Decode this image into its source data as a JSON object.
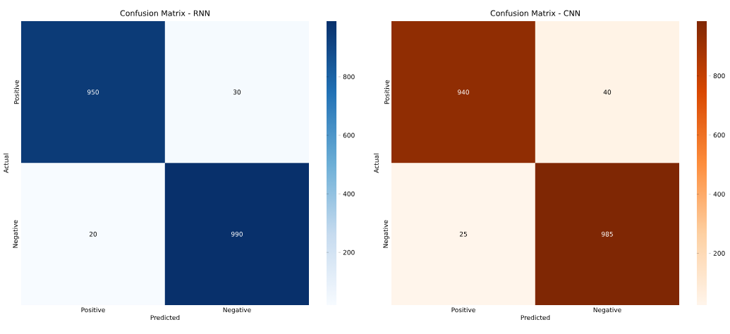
{
  "chart_data": [
    {
      "type": "heatmap",
      "title": "Confusion Matrix - RNN",
      "xlabel": "Predicted",
      "ylabel": "Actual",
      "categories": [
        "Positive",
        "Negative"
      ],
      "y_categories": [
        "Positive",
        "Negative"
      ],
      "cells": [
        [
          950,
          30
        ],
        [
          20,
          990
        ]
      ],
      "data_labels": true,
      "clim": [
        20,
        990
      ],
      "cticks": [
        200,
        400,
        600,
        800
      ]
    },
    {
      "type": "heatmap",
      "title": "Confusion Matrix - CNN",
      "xlabel": "Predicted",
      "ylabel": "Actual",
      "categories": [
        "Positive",
        "Negative"
      ],
      "y_categories": [
        "Positive",
        "Negative"
      ],
      "cells": [
        [
          940,
          40
        ],
        [
          25,
          985
        ]
      ],
      "data_labels": true,
      "clim": [
        25,
        985
      ],
      "cticks": [
        200,
        400,
        600,
        800
      ]
    }
  ]
}
